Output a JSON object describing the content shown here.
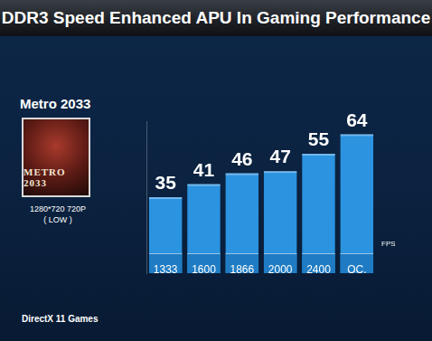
{
  "chart_data": {
    "type": "bar",
    "title": "DDR3 Speed Enhanced APU In Gaming Performance",
    "subtitle": "Metro 2033",
    "annotations": [
      "1280*720 720P",
      "( LOW )",
      "METRO 2033",
      "DirectX 11 Games"
    ],
    "ylabel": "FPS",
    "categories": [
      "1333",
      "1600",
      "1866",
      "2000",
      "2400",
      "OC."
    ],
    "values": [
      35,
      41,
      46,
      47,
      55,
      64
    ],
    "color": "#2b93e0",
    "ylim": [
      0,
      70
    ],
    "yticks": [
      0,
      10,
      20,
      30,
      40,
      50,
      60,
      70
    ],
    "grid": false,
    "data_labels": true,
    "tick_labels": "x"
  }
}
